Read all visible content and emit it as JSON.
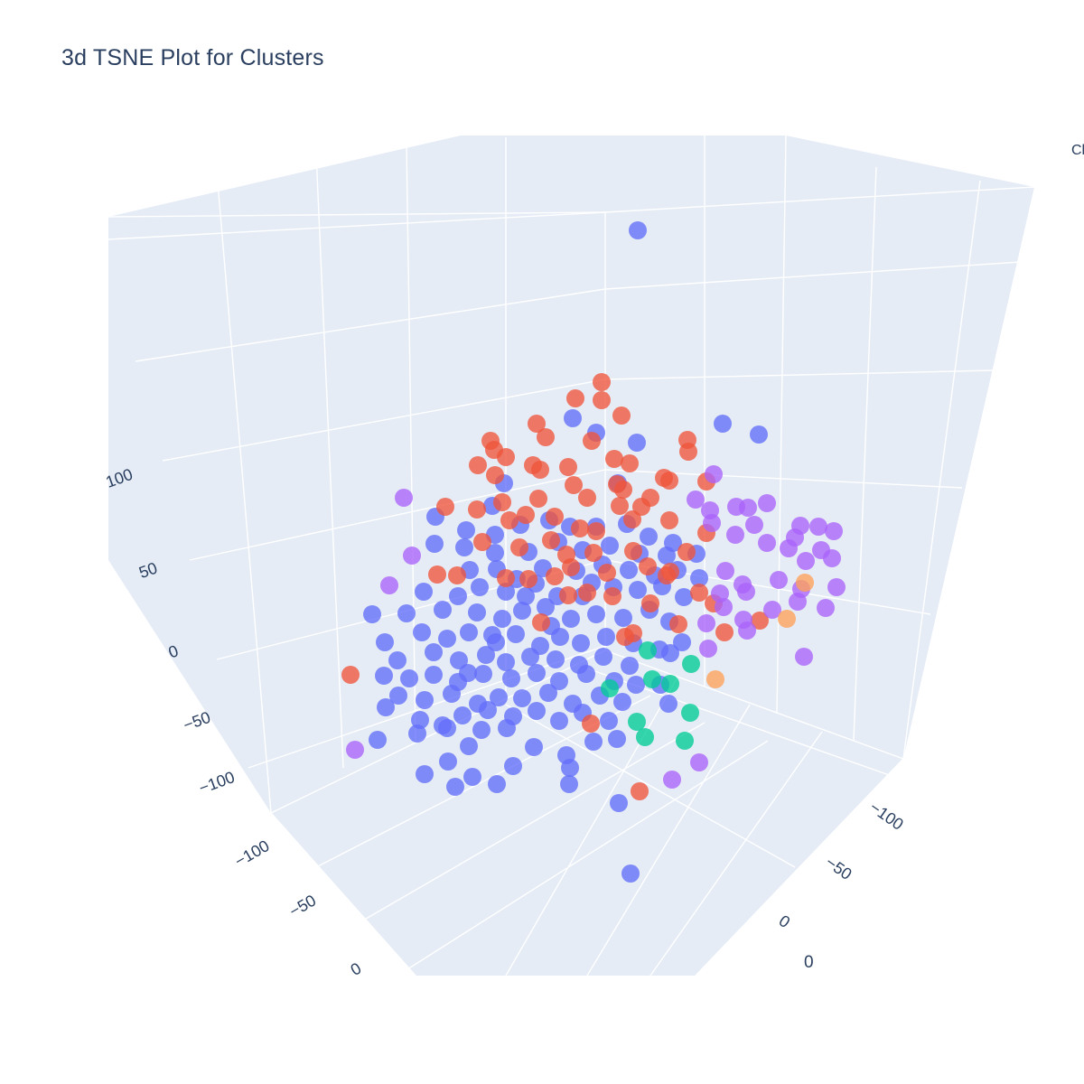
{
  "title": "3d TSNE Plot for Clusters",
  "legend_fragment": "Cl",
  "bottom_label": "0",
  "colors": {
    "scene_background": "#e5ecf6",
    "grid": "#ffffff",
    "text": "#2a3f5f",
    "cluster_blue": "#636efa",
    "cluster_red": "#ef553b",
    "cluster_teal": "#00cc96",
    "cluster_purple": "#ab63fa",
    "cluster_orange": "#ffa15a"
  },
  "chart_data": {
    "type": "scatter",
    "projection": "3d",
    "title": "3d TSNE Plot for Clusters",
    "axes": {
      "z": {
        "title": "",
        "ticks": [
          "100",
          "50",
          "0",
          "−50",
          "−100"
        ]
      },
      "left_axis": {
        "title": "",
        "ticks": [
          "−100",
          "−50",
          "0"
        ]
      },
      "right_axis": {
        "title": "",
        "ticks": [
          "−100",
          "−50",
          "0"
        ]
      }
    },
    "grid": true,
    "legend": "top-right, clipped",
    "series": [
      {
        "color_key": "cluster_blue",
        "points": [
          [
            706,
            255
          ],
          [
            800,
            469
          ],
          [
            840,
            481
          ],
          [
            634,
            463
          ],
          [
            660,
            479
          ],
          [
            705,
            490
          ],
          [
            684,
            535
          ],
          [
            558,
            535
          ],
          [
            545,
            560
          ],
          [
            482,
            572
          ],
          [
            516,
            587
          ],
          [
            548,
            592
          ],
          [
            576,
            581
          ],
          [
            608,
            576
          ],
          [
            631,
            583
          ],
          [
            660,
            583
          ],
          [
            694,
            580
          ],
          [
            718,
            594
          ],
          [
            745,
            601
          ],
          [
            771,
            613
          ],
          [
            481,
            602
          ],
          [
            514,
            606
          ],
          [
            548,
            612
          ],
          [
            585,
            611
          ],
          [
            618,
            600
          ],
          [
            645,
            609
          ],
          [
            675,
            604
          ],
          [
            708,
            613
          ],
          [
            738,
            615
          ],
          [
            520,
            631
          ],
          [
            550,
            630
          ],
          [
            572,
            641
          ],
          [
            601,
            629
          ],
          [
            638,
            632
          ],
          [
            667,
            625
          ],
          [
            696,
            631
          ],
          [
            725,
            637
          ],
          [
            750,
            631
          ],
          [
            774,
            640
          ],
          [
            469,
            655
          ],
          [
            507,
            660
          ],
          [
            531,
            650
          ],
          [
            560,
            655
          ],
          [
            593,
            646
          ],
          [
            617,
            660
          ],
          [
            645,
            660
          ],
          [
            679,
            650
          ],
          [
            706,
            653
          ],
          [
            733,
            649
          ],
          [
            757,
            661
          ],
          [
            412,
            680
          ],
          [
            450,
            679
          ],
          [
            490,
            675
          ],
          [
            528,
            678
          ],
          [
            556,
            685
          ],
          [
            578,
            676
          ],
          [
            604,
            672
          ],
          [
            632,
            685
          ],
          [
            660,
            680
          ],
          [
            690,
            684
          ],
          [
            719,
            675
          ],
          [
            741,
            688
          ],
          [
            426,
            711
          ],
          [
            467,
            700
          ],
          [
            495,
            707
          ],
          [
            519,
            700
          ],
          [
            549,
            711
          ],
          [
            571,
            702
          ],
          [
            598,
            715
          ],
          [
            620,
            705
          ],
          [
            643,
            712
          ],
          [
            671,
            705
          ],
          [
            701,
            712
          ],
          [
            730,
            719
          ],
          [
            755,
            711
          ],
          [
            440,
            731
          ],
          [
            480,
            722
          ],
          [
            508,
            731
          ],
          [
            538,
            725
          ],
          [
            560,
            733
          ],
          [
            587,
            727
          ],
          [
            615,
            730
          ],
          [
            641,
            736
          ],
          [
            668,
            727
          ],
          [
            697,
            737
          ],
          [
            742,
            723
          ],
          [
            425,
            748
          ],
          [
            453,
            751
          ],
          [
            480,
            747
          ],
          [
            507,
            755
          ],
          [
            535,
            746
          ],
          [
            566,
            751
          ],
          [
            594,
            745
          ],
          [
            619,
            754
          ],
          [
            649,
            746
          ],
          [
            680,
            754
          ],
          [
            704,
            758
          ],
          [
            731,
            758
          ],
          [
            441,
            770
          ],
          [
            470,
            775
          ],
          [
            500,
            768
          ],
          [
            529,
            779
          ],
          [
            552,
            772
          ],
          [
            578,
            773
          ],
          [
            607,
            767
          ],
          [
            634,
            779
          ],
          [
            664,
            770
          ],
          [
            689,
            777
          ],
          [
            740,
            779
          ],
          [
            465,
            797
          ],
          [
            490,
            803
          ],
          [
            512,
            792
          ],
          [
            540,
            786
          ],
          [
            568,
            793
          ],
          [
            594,
            787
          ],
          [
            619,
            798
          ],
          [
            645,
            789
          ],
          [
            674,
            798
          ],
          [
            427,
            783
          ],
          [
            462,
            812
          ],
          [
            495,
            806
          ],
          [
            533,
            808
          ],
          [
            561,
            806
          ],
          [
            591,
            827
          ],
          [
            627,
            836
          ],
          [
            657,
            821
          ],
          [
            683,
            818
          ],
          [
            418,
            819
          ],
          [
            519,
            826
          ],
          [
            568,
            848
          ],
          [
            631,
            850
          ],
          [
            496,
            843
          ],
          [
            550,
            868
          ],
          [
            470,
            857
          ],
          [
            523,
            860
          ],
          [
            504,
            871
          ],
          [
            630,
            868
          ],
          [
            685,
            889
          ],
          [
            698,
            967
          ],
          [
            545,
            703
          ],
          [
            610,
            693
          ],
          [
            582,
            660
          ],
          [
            655,
            645
          ],
          [
            518,
            745
          ]
        ]
      },
      {
        "color_key": "cluster_red",
        "points": [
          [
            666,
            423
          ],
          [
            637,
            441
          ],
          [
            666,
            443
          ],
          [
            688,
            460
          ],
          [
            594,
            469
          ],
          [
            604,
            484
          ],
          [
            655,
            488
          ],
          [
            543,
            488
          ],
          [
            547,
            498
          ],
          [
            560,
            506
          ],
          [
            590,
            515
          ],
          [
            598,
            520
          ],
          [
            629,
            517
          ],
          [
            635,
            537
          ],
          [
            548,
            526
          ],
          [
            529,
            515
          ],
          [
            680,
            508
          ],
          [
            697,
            513
          ],
          [
            761,
            487
          ],
          [
            762,
            500
          ],
          [
            735,
            529
          ],
          [
            741,
            532
          ],
          [
            782,
            533
          ],
          [
            683,
            536
          ],
          [
            690,
            542
          ],
          [
            650,
            551
          ],
          [
            596,
            552
          ],
          [
            556,
            556
          ],
          [
            528,
            564
          ],
          [
            493,
            561
          ],
          [
            614,
            572
          ],
          [
            564,
            576
          ],
          [
            582,
            570
          ],
          [
            720,
            551
          ],
          [
            741,
            576
          ],
          [
            686,
            560
          ],
          [
            700,
            575
          ],
          [
            642,
            585
          ],
          [
            660,
            588
          ],
          [
            534,
            600
          ],
          [
            575,
            606
          ],
          [
            610,
            598
          ],
          [
            627,
            614
          ],
          [
            657,
            612
          ],
          [
            701,
            610
          ],
          [
            760,
            611
          ],
          [
            782,
            590
          ],
          [
            484,
            636
          ],
          [
            506,
            637
          ],
          [
            560,
            640
          ],
          [
            585,
            641
          ],
          [
            614,
            638
          ],
          [
            632,
            628
          ],
          [
            672,
            634
          ],
          [
            717,
            627
          ],
          [
            742,
            633
          ],
          [
            629,
            659
          ],
          [
            650,
            656
          ],
          [
            678,
            660
          ],
          [
            720,
            668
          ],
          [
            774,
            656
          ],
          [
            790,
            668
          ],
          [
            599,
            689
          ],
          [
            692,
            705
          ],
          [
            701,
            701
          ],
          [
            751,
            691
          ],
          [
            802,
            700
          ],
          [
            841,
            687
          ],
          [
            388,
            747
          ],
          [
            654,
            801
          ],
          [
            708,
            876
          ],
          [
            710,
            561
          ],
          [
            738,
            637
          ]
        ]
      },
      {
        "color_key": "cluster_purple",
        "points": [
          [
            447,
            551
          ],
          [
            456,
            615
          ],
          [
            431,
            648
          ],
          [
            393,
            830
          ],
          [
            790,
            525
          ],
          [
            770,
            553
          ],
          [
            786,
            565
          ],
          [
            815,
            561
          ],
          [
            828,
            562
          ],
          [
            849,
            557
          ],
          [
            788,
            579
          ],
          [
            814,
            592
          ],
          [
            835,
            581
          ],
          [
            886,
            582
          ],
          [
            906,
            583
          ],
          [
            923,
            588
          ],
          [
            880,
            595
          ],
          [
            849,
            601
          ],
          [
            873,
            607
          ],
          [
            909,
            609
          ],
          [
            921,
            618
          ],
          [
            892,
            621
          ],
          [
            803,
            632
          ],
          [
            822,
            647
          ],
          [
            862,
            642
          ],
          [
            887,
            652
          ],
          [
            926,
            650
          ],
          [
            797,
            657
          ],
          [
            826,
            655
          ],
          [
            801,
            672
          ],
          [
            855,
            675
          ],
          [
            883,
            666
          ],
          [
            914,
            673
          ],
          [
            782,
            690
          ],
          [
            823,
            686
          ],
          [
            827,
            698
          ],
          [
            784,
            718
          ],
          [
            890,
            727
          ],
          [
            744,
            863
          ],
          [
            774,
            844
          ]
        ]
      },
      {
        "color_key": "cluster_teal",
        "points": [
          [
            675,
            762
          ],
          [
            717,
            720
          ],
          [
            722,
            752
          ],
          [
            742,
            757
          ],
          [
            765,
            735
          ],
          [
            764,
            789
          ],
          [
            705,
            799
          ],
          [
            714,
            816
          ],
          [
            758,
            820
          ]
        ]
      },
      {
        "color_key": "cluster_orange",
        "points": [
          [
            891,
            645
          ],
          [
            871,
            685
          ],
          [
            792,
            752
          ]
        ]
      }
    ]
  }
}
